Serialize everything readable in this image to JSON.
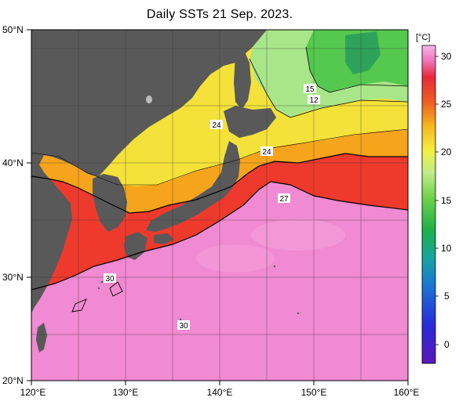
{
  "title": "Daily SSTs 21 Sep. 2023.",
  "map": {
    "region": "Japan and North-West Pacific",
    "lat_labels": [
      "50°N",
      "40°N",
      "30°N",
      "20°N"
    ],
    "lon_labels": [
      "120°E",
      "130°E",
      "140°E",
      "150°E",
      "160°E"
    ],
    "contour_labels": [
      "24",
      "24",
      "27",
      "30",
      "30",
      "15",
      "12"
    ],
    "land_color": "#595959",
    "colors": {
      "sst_30": "#f08ad2",
      "sst_27": "#ee3a2c",
      "sst_24": "#f6a41c",
      "sst_20": "#f6e83c",
      "sst_15": "#7fd94f",
      "sst_10": "#2bb24f"
    }
  },
  "colorbar": {
    "unit": "[°C]",
    "ticks": [
      "30",
      "25",
      "20",
      "15",
      "10",
      "5",
      "0"
    ],
    "min": -2,
    "max": 31
  }
}
